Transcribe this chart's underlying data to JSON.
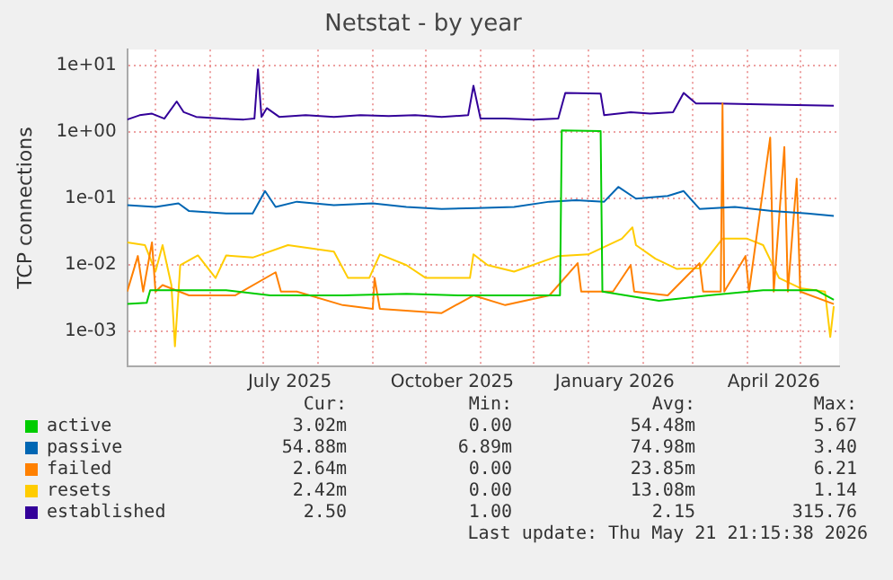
{
  "chart_data": {
    "type": "line",
    "title": "Netstat - by year",
    "ylabel": "TCP connections",
    "log": "y",
    "grid": true,
    "legend": "bottom",
    "marker": "none",
    "xlim": [
      "2025-04-15",
      "2026-05-23"
    ],
    "xticks": [
      {
        "value": "2025-05-01",
        "label": null
      },
      {
        "value": "2025-06-01",
        "label": null
      },
      {
        "value": "2025-07-01",
        "label": null
      },
      {
        "value": "2025-07-16",
        "label": "July 2025"
      },
      {
        "value": "2025-08-01",
        "label": null
      },
      {
        "value": "2025-09-01",
        "label": null
      },
      {
        "value": "2025-10-01",
        "label": null
      },
      {
        "value": "2025-10-16",
        "label": "October 2025"
      },
      {
        "value": "2025-11-01",
        "label": null
      },
      {
        "value": "2025-12-01",
        "label": null
      },
      {
        "value": "2026-01-01",
        "label": null
      },
      {
        "value": "2026-01-16",
        "label": "January 2026"
      },
      {
        "value": "2026-02-01",
        "label": null
      },
      {
        "value": "2026-03-01",
        "label": null
      },
      {
        "value": "2026-04-01",
        "label": null
      },
      {
        "value": "2026-04-16",
        "label": "April 2026"
      },
      {
        "value": "2026-05-01",
        "label": null
      }
    ],
    "ylim": [
      0.00033,
      17.5
    ],
    "yticks": [
      {
        "value": 0.001,
        "label": "1e-03"
      },
      {
        "value": 0.01,
        "label": "1e-02"
      },
      {
        "value": 0.1,
        "label": "1e-01"
      },
      {
        "value": 1,
        "label": "1e+00"
      },
      {
        "value": 10,
        "label": "1e+01"
      }
    ],
    "series": [
      {
        "name": "active",
        "color": "#00cc00",
        "x": [
          "2025-04-15",
          "2025-04-26",
          "2025-04-28",
          "2025-06-10",
          "2025-07-05",
          "2025-08-15",
          "2025-09-20",
          "2025-10-20",
          "2025-11-20",
          "2025-12-16",
          "2025-12-17",
          "2026-01-08",
          "2026-01-09",
          "2026-02-10",
          "2026-03-10",
          "2026-04-10",
          "2026-05-10",
          "2026-05-20"
        ],
        "values": [
          0.0026,
          0.0027,
          0.0042,
          0.0042,
          0.0035,
          0.0035,
          0.0037,
          0.0035,
          0.0035,
          0.0035,
          1.06,
          1.04,
          0.004,
          0.0029,
          0.0035,
          0.0042,
          0.0042,
          0.003
        ]
      },
      {
        "name": "passive",
        "color": "#0066b3",
        "x": [
          "2025-04-15",
          "2025-05-01",
          "2025-05-14",
          "2025-05-20",
          "2025-06-10",
          "2025-06-25",
          "2025-07-02",
          "2025-07-08",
          "2025-07-20",
          "2025-08-10",
          "2025-09-01",
          "2025-09-20",
          "2025-10-10",
          "2025-10-30",
          "2025-11-20",
          "2025-12-10",
          "2025-12-25",
          "2026-01-10",
          "2026-01-18",
          "2026-01-28",
          "2026-02-15",
          "2026-02-24",
          "2026-03-05",
          "2026-03-25",
          "2026-04-15",
          "2026-05-05",
          "2026-05-20"
        ],
        "values": [
          0.08,
          0.075,
          0.085,
          0.065,
          0.06,
          0.06,
          0.13,
          0.075,
          0.09,
          0.08,
          0.085,
          0.075,
          0.07,
          0.072,
          0.075,
          0.09,
          0.095,
          0.09,
          0.15,
          0.1,
          0.11,
          0.13,
          0.07,
          0.075,
          0.065,
          0.06,
          0.055
        ]
      },
      {
        "name": "failed",
        "color": "#ff8000",
        "x": [
          "2025-04-15",
          "2025-04-21",
          "2025-04-24",
          "2025-04-29",
          "2025-05-01",
          "2025-05-05",
          "2025-05-20",
          "2025-06-15",
          "2025-07-08",
          "2025-07-11",
          "2025-07-20",
          "2025-08-15",
          "2025-09-01",
          "2025-09-02",
          "2025-09-05",
          "2025-10-10",
          "2025-10-28",
          "2025-11-15",
          "2025-12-10",
          "2025-12-26",
          "2025-12-28",
          "2026-01-15",
          "2026-01-25",
          "2026-01-27",
          "2026-02-15",
          "2026-03-05",
          "2026-03-07",
          "2026-03-17",
          "2026-03-18",
          "2026-03-19",
          "2026-03-31",
          "2026-04-02",
          "2026-04-14",
          "2026-04-16",
          "2026-04-22",
          "2026-04-24",
          "2026-04-29",
          "2026-05-01",
          "2026-05-20"
        ],
        "values": [
          0.004,
          0.0137,
          0.004,
          0.022,
          0.004,
          0.005,
          0.0035,
          0.0035,
          0.0078,
          0.004,
          0.004,
          0.0025,
          0.0022,
          0.0064,
          0.0022,
          0.0019,
          0.0035,
          0.0025,
          0.0035,
          0.0107,
          0.004,
          0.004,
          0.01,
          0.004,
          0.0035,
          0.0107,
          0.004,
          0.004,
          2.7,
          0.004,
          0.0137,
          0.004,
          0.83,
          0.004,
          0.6,
          0.004,
          0.2,
          0.004,
          0.0026
        ]
      },
      {
        "name": "resets",
        "color": "#ffcc00",
        "x": [
          "2025-04-15",
          "2025-04-25",
          "2025-05-01",
          "2025-05-05",
          "2025-05-10",
          "2025-05-12",
          "2025-05-15",
          "2025-05-25",
          "2025-06-04",
          "2025-06-10",
          "2025-06-25",
          "2025-07-15",
          "2025-08-10",
          "2025-08-18",
          "2025-08-30",
          "2025-09-05",
          "2025-09-20",
          "2025-10-01",
          "2025-10-26",
          "2025-10-28",
          "2025-11-05",
          "2025-11-20",
          "2025-12-15",
          "2026-01-01",
          "2026-01-20",
          "2026-01-26",
          "2026-01-28",
          "2026-02-08",
          "2026-02-20",
          "2026-03-05",
          "2026-03-18",
          "2026-04-01",
          "2026-04-10",
          "2026-04-19",
          "2026-05-01",
          "2026-05-15",
          "2026-05-18",
          "2026-05-20"
        ],
        "values": [
          0.022,
          0.02,
          0.008,
          0.02,
          0.005,
          0.0006,
          0.01,
          0.014,
          0.0064,
          0.014,
          0.013,
          0.02,
          0.016,
          0.0064,
          0.0064,
          0.0145,
          0.01,
          0.0064,
          0.0064,
          0.0145,
          0.01,
          0.008,
          0.0137,
          0.0145,
          0.025,
          0.037,
          0.02,
          0.0125,
          0.0088,
          0.009,
          0.025,
          0.025,
          0.02,
          0.0064,
          0.0045,
          0.004,
          0.00083,
          0.0024
        ]
      },
      {
        "name": "established",
        "color": "#330099",
        "x": [
          "2025-04-15",
          "2025-04-22",
          "2025-04-29",
          "2025-05-06",
          "2025-05-13",
          "2025-05-17",
          "2025-05-24",
          "2025-06-07",
          "2025-06-20",
          "2025-06-26",
          "2025-06-28",
          "2025-06-30",
          "2025-07-03",
          "2025-07-10",
          "2025-07-25",
          "2025-08-10",
          "2025-08-25",
          "2025-09-10",
          "2025-09-25",
          "2025-10-10",
          "2025-10-25",
          "2025-10-28",
          "2025-11-01",
          "2025-11-15",
          "2025-12-01",
          "2025-12-15",
          "2025-12-19",
          "2026-01-08",
          "2026-01-10",
          "2026-01-25",
          "2026-02-05",
          "2026-02-18",
          "2026-02-24",
          "2026-03-03",
          "2026-03-15",
          "2026-04-15",
          "2026-05-20"
        ],
        "values": [
          1.55,
          1.8,
          1.9,
          1.6,
          2.9,
          2.0,
          1.7,
          1.6,
          1.55,
          1.6,
          8.8,
          1.7,
          2.3,
          1.7,
          1.8,
          1.7,
          1.8,
          1.75,
          1.8,
          1.7,
          1.8,
          5.0,
          1.6,
          1.6,
          1.55,
          1.6,
          3.9,
          3.8,
          1.8,
          2.0,
          1.9,
          2.0,
          3.9,
          2.7,
          2.7,
          2.6,
          2.5
        ]
      }
    ],
    "annotations": [
      "Cur:",
      "Min:",
      "Avg:",
      "Max:",
      "3.02m",
      "0.00",
      "54.48m",
      "5.67",
      "54.88m",
      "6.89m",
      "74.98m",
      "3.40",
      "2.64m",
      "0.00",
      "23.85m",
      "6.21",
      "2.42m",
      "0.00",
      "13.08m",
      "1.14",
      "2.50",
      "1.00",
      "2.15",
      "315.76",
      "Last update: Thu May 21 21:15:38 2026"
    ]
  }
}
